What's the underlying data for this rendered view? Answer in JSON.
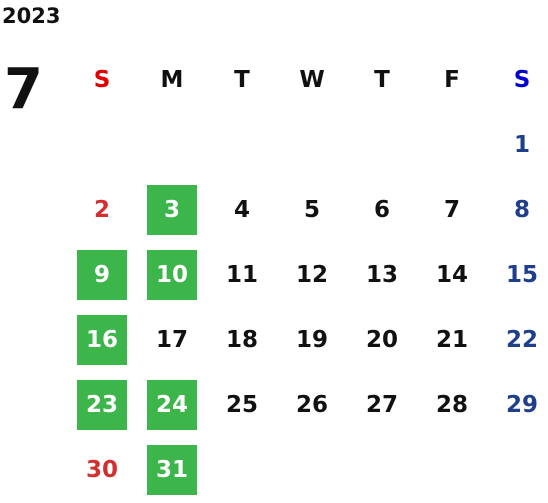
{
  "year": "2023",
  "month": "7",
  "weekdays": [
    "S",
    "M",
    "T",
    "W",
    "T",
    "F",
    "S"
  ],
  "weeks": [
    [
      null,
      null,
      null,
      null,
      null,
      null,
      {
        "day": "1",
        "highlighted": false
      }
    ],
    [
      {
        "day": "2",
        "highlighted": false
      },
      {
        "day": "3",
        "highlighted": true
      },
      {
        "day": "4",
        "highlighted": false
      },
      {
        "day": "5",
        "highlighted": false
      },
      {
        "day": "6",
        "highlighted": false
      },
      {
        "day": "7",
        "highlighted": false
      },
      {
        "day": "8",
        "highlighted": false
      }
    ],
    [
      {
        "day": "9",
        "highlighted": true
      },
      {
        "day": "10",
        "highlighted": true
      },
      {
        "day": "11",
        "highlighted": false
      },
      {
        "day": "12",
        "highlighted": false
      },
      {
        "day": "13",
        "highlighted": false
      },
      {
        "day": "14",
        "highlighted": false
      },
      {
        "day": "15",
        "highlighted": false
      }
    ],
    [
      {
        "day": "16",
        "highlighted": true
      },
      {
        "day": "17",
        "highlighted": false
      },
      {
        "day": "18",
        "highlighted": false
      },
      {
        "day": "19",
        "highlighted": false
      },
      {
        "day": "20",
        "highlighted": false
      },
      {
        "day": "21",
        "highlighted": false
      },
      {
        "day": "22",
        "highlighted": false
      }
    ],
    [
      {
        "day": "23",
        "highlighted": true
      },
      {
        "day": "24",
        "highlighted": true
      },
      {
        "day": "25",
        "highlighted": false
      },
      {
        "day": "26",
        "highlighted": false
      },
      {
        "day": "27",
        "highlighted": false
      },
      {
        "day": "28",
        "highlighted": false
      },
      {
        "day": "29",
        "highlighted": false
      }
    ],
    [
      {
        "day": "30",
        "highlighted": false
      },
      {
        "day": "31",
        "highlighted": true
      },
      null,
      null,
      null,
      null,
      null
    ]
  ]
}
